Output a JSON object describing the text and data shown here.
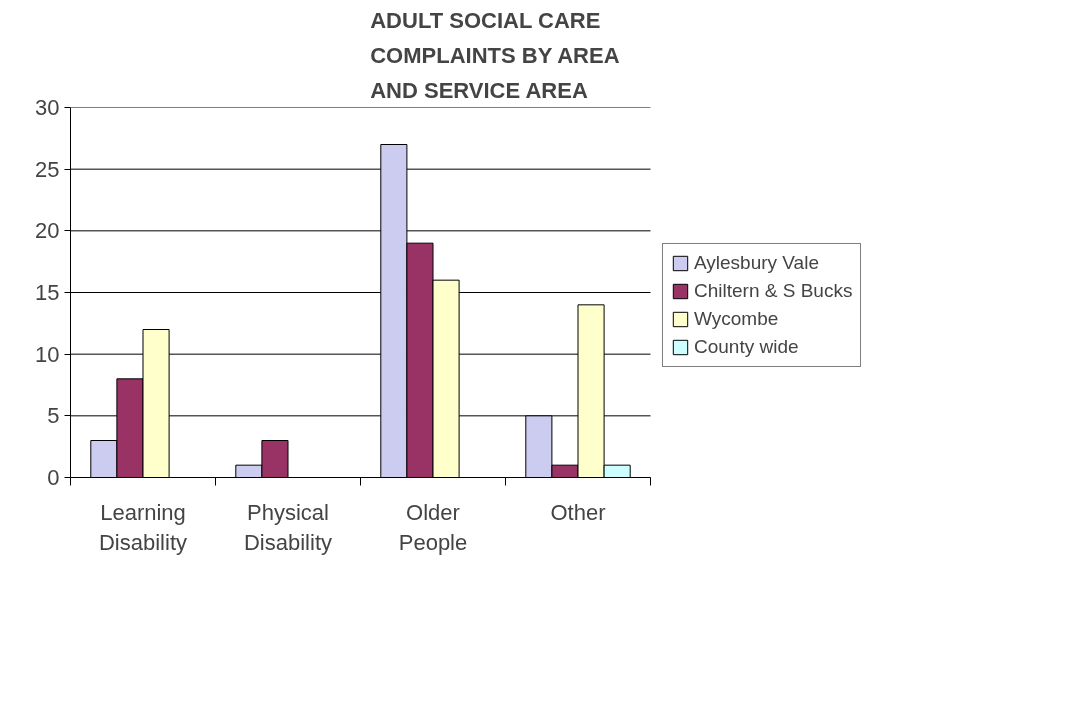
{
  "chart_data": {
    "type": "bar",
    "title": "ADULT SOCIAL CARE COMPLAINTS BY AREA AND SERVICE AREA",
    "categories": [
      "Learning Disability",
      "Physical Disability",
      "Older People",
      "Other"
    ],
    "series": [
      {
        "name": "Aylesbury Vale",
        "color": "#ccccf0",
        "values": [
          3,
          1,
          27,
          5
        ]
      },
      {
        "name": "Chiltern & S Bucks",
        "color": "#993366",
        "values": [
          8,
          3,
          19,
          1
        ]
      },
      {
        "name": "Wycombe",
        "color": "#ffffcc",
        "values": [
          12,
          null,
          16,
          14
        ]
      },
      {
        "name": "County wide",
        "color": "#ccffff",
        "values": [
          null,
          null,
          null,
          1
        ]
      }
    ],
    "ylim": [
      0,
      30
    ],
    "yticks": [
      0,
      5,
      10,
      15,
      20,
      25,
      30
    ],
    "grid": "y",
    "legend": "right"
  }
}
